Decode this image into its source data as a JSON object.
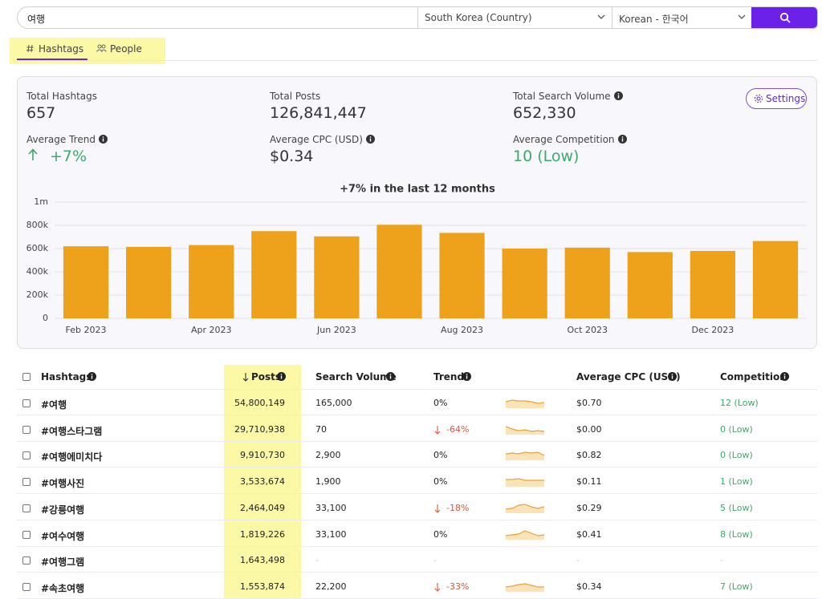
{
  "search": {
    "query": "여행",
    "country": "South Korea (Country)",
    "language": "Korean - 한국어"
  },
  "tabs": [
    "Hashtags",
    "People"
  ],
  "stats": {
    "total_hashtags": {
      "label": "Total Hashtags",
      "value": "657"
    },
    "total_posts": {
      "label": "Total Posts",
      "value": "126,841,447"
    },
    "total_search_volume": {
      "label": "Total Search Volume",
      "value": "652,330"
    },
    "average_trend": {
      "label": "Average Trend",
      "value": "+7%"
    },
    "average_cpc": {
      "label": "Average CPC (USD)",
      "value": "$0.34"
    },
    "average_competition": {
      "label": "Average Competition",
      "value": "10 (Low)"
    }
  },
  "settings_button": "Settings",
  "chart_data": {
    "type": "bar",
    "title": "+7% in the last 12 months",
    "categories": [
      "Feb 2023",
      null,
      "Apr 2023",
      null,
      "Jun 2023",
      null,
      "Aug 2023",
      null,
      "Oct 2023",
      null,
      "Dec 2023",
      null
    ],
    "values": [
      620000,
      615000,
      630000,
      750000,
      705000,
      805000,
      735000,
      600000,
      608000,
      570000,
      580000,
      665000
    ],
    "color": "#eea21c",
    "ylim": [
      0,
      1000000
    ],
    "yticks": [
      {
        "value": 0,
        "label": "0"
      },
      {
        "value": 200000,
        "label": "200k"
      },
      {
        "value": 400000,
        "label": "400k"
      },
      {
        "value": 600000,
        "label": "600k"
      },
      {
        "value": 800000,
        "label": "800k"
      },
      {
        "value": 1000000,
        "label": "1m"
      }
    ],
    "grid": true
  },
  "table": {
    "columns": [
      "Hashtags",
      "Posts",
      "Search Volume",
      "Trend",
      "Average CPC (USD)",
      "Competition"
    ],
    "rows": [
      [
        "#여행",
        "54,800,149",
        "165,000",
        "0%",
        "$0.70",
        "12 (Low)"
      ],
      [
        "#여행스타그램",
        "29,710,938",
        "70",
        "-64%",
        "$0.00",
        "0 (Low)"
      ],
      [
        "#여행에미치다",
        "9,910,730",
        "2,900",
        "0%",
        "$0.82",
        "0 (Low)"
      ],
      [
        "#여행사진",
        "3,533,674",
        "1,900",
        "0%",
        "$0.11",
        "1 (Low)"
      ],
      [
        "#강릉여행",
        "2,464,049",
        "33,100",
        "-18%",
        "$0.29",
        "5 (Low)"
      ],
      [
        "#여수여행",
        "1,819,226",
        "33,100",
        "0%",
        "$0.41",
        "8 (Low)"
      ],
      [
        "#여행그램",
        "1,643,498",
        "-",
        "-",
        "-",
        "-"
      ],
      [
        "#속초여행",
        "1,553,874",
        "22,200",
        "-33%",
        "$0.34",
        "7 (Low)"
      ]
    ]
  }
}
